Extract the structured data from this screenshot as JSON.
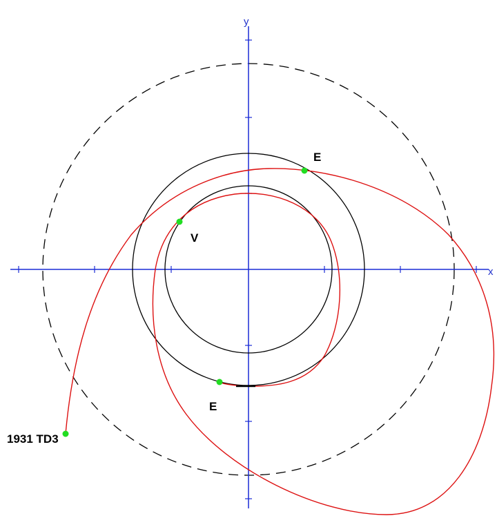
{
  "axes": {
    "x_label": "x",
    "y_label": "y"
  },
  "labels": {
    "earth_top": "E",
    "venus": "V",
    "earth_bottom": "E",
    "asteroid": "1931 TD3"
  }
}
